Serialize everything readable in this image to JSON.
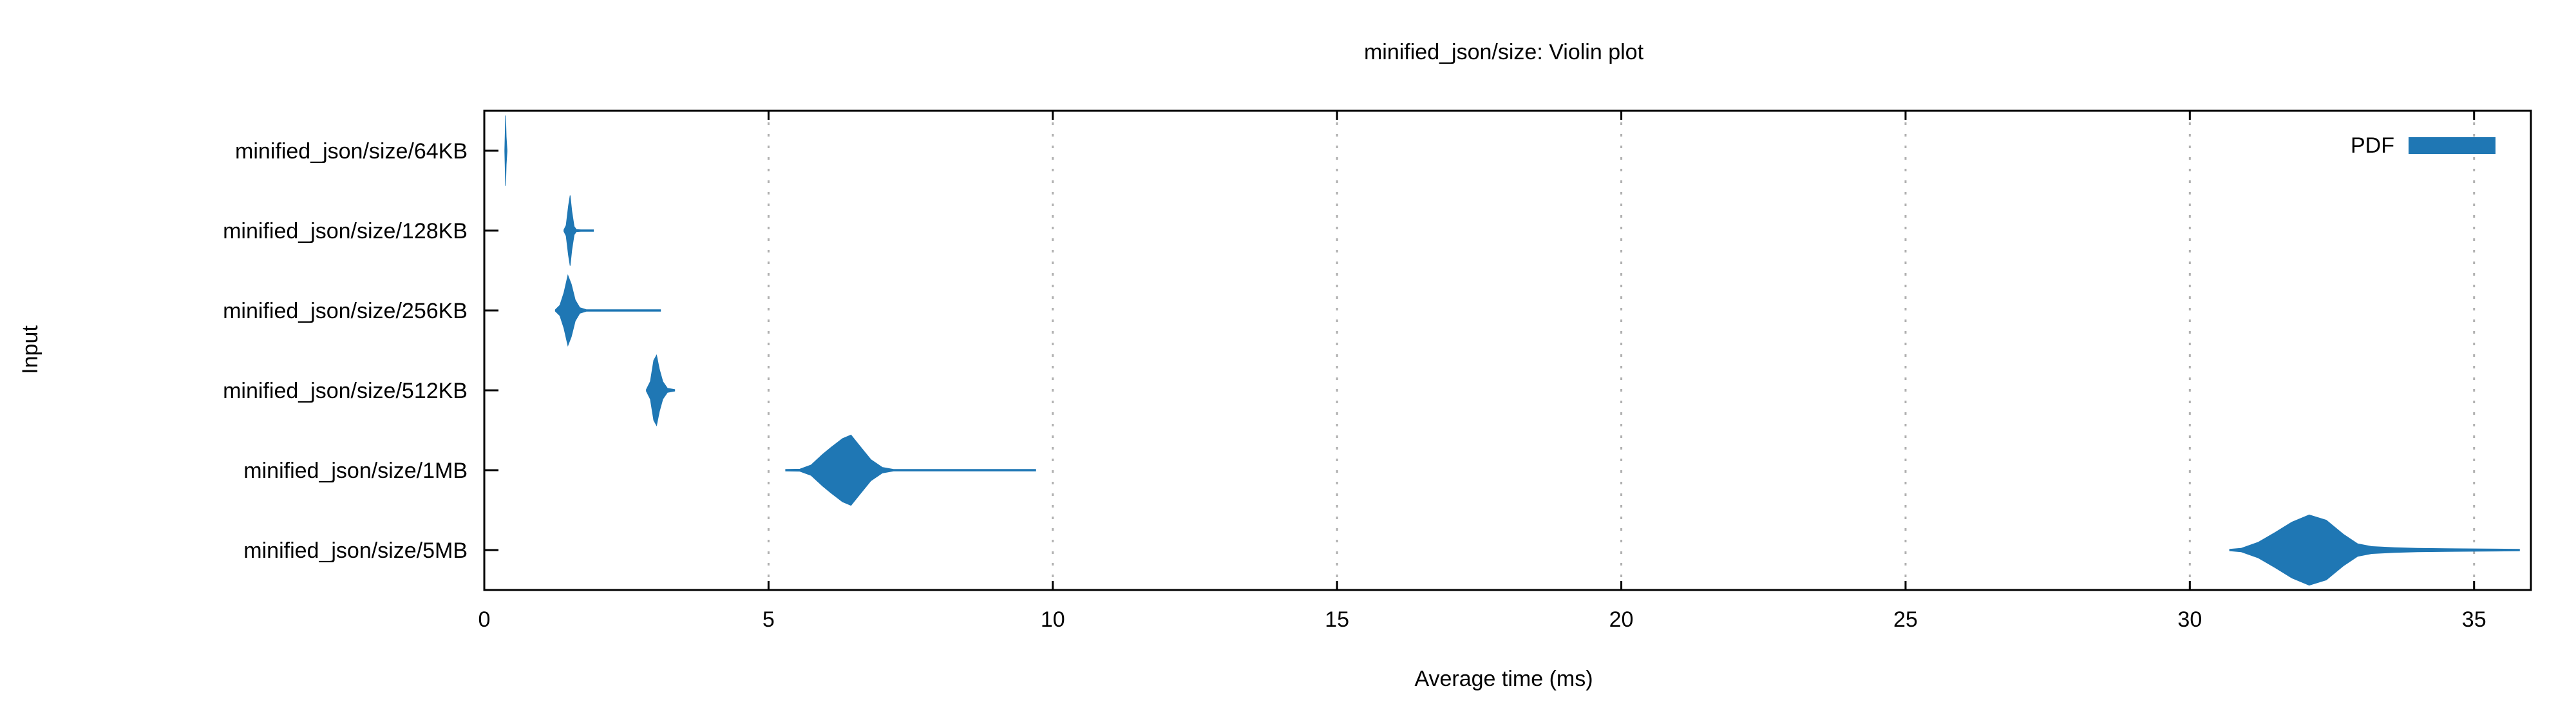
{
  "chart_data": {
    "type": "violin",
    "title": "minified_json/size: Violin plot",
    "xlabel": "Average time (ms)",
    "ylabel": "Input",
    "xlim": [
      0,
      36
    ],
    "xticks": [
      0,
      5,
      10,
      15,
      20,
      25,
      30,
      35
    ],
    "grid": {
      "x": true,
      "y": false,
      "style": "dotted"
    },
    "legend": {
      "label": "PDF",
      "position": "top-right"
    },
    "colors": {
      "violin": "#1f77b4",
      "grid": "#b0b0b0",
      "axis": "#000000"
    },
    "categories": [
      "minified_json/size/64KB",
      "minified_json/size/128KB",
      "minified_json/size/256KB",
      "minified_json/size/512KB",
      "minified_json/size/1MB",
      "minified_json/size/5MB"
    ],
    "series": [
      {
        "category": "minified_json/size/64KB",
        "min": 0.36,
        "max": 0.4,
        "density": [
          [
            0.36,
            0.0
          ],
          [
            0.375,
            1.0
          ],
          [
            0.385,
            0.4
          ],
          [
            0.4,
            0.0
          ]
        ]
      },
      {
        "category": "minified_json/size/128KB",
        "min": 1.4,
        "max": 1.92,
        "density": [
          [
            1.4,
            0.0
          ],
          [
            1.44,
            0.15
          ],
          [
            1.48,
            0.7
          ],
          [
            1.51,
            1.0
          ],
          [
            1.54,
            0.55
          ],
          [
            1.58,
            0.12
          ],
          [
            1.62,
            0.03
          ],
          [
            1.7,
            0.01
          ],
          [
            1.85,
            0.02
          ],
          [
            1.92,
            0.0
          ]
        ]
      },
      {
        "category": "minified_json/size/256KB",
        "min": 1.25,
        "max": 3.1,
        "density": [
          [
            1.25,
            0.0
          ],
          [
            1.33,
            0.15
          ],
          [
            1.4,
            0.5
          ],
          [
            1.47,
            1.0
          ],
          [
            1.53,
            0.75
          ],
          [
            1.6,
            0.3
          ],
          [
            1.68,
            0.08
          ],
          [
            1.8,
            0.01
          ],
          [
            2.9,
            0.01
          ],
          [
            3.1,
            0.0
          ]
        ]
      },
      {
        "category": "minified_json/size/512KB",
        "min": 2.85,
        "max": 3.35,
        "density": [
          [
            2.85,
            0.0
          ],
          [
            2.92,
            0.25
          ],
          [
            2.98,
            0.85
          ],
          [
            3.03,
            1.0
          ],
          [
            3.08,
            0.6
          ],
          [
            3.14,
            0.25
          ],
          [
            3.22,
            0.06
          ],
          [
            3.35,
            0.0
          ]
        ]
      },
      {
        "category": "minified_json/size/1MB",
        "min": 5.3,
        "max": 9.7,
        "density": [
          [
            5.3,
            0.0
          ],
          [
            5.55,
            0.03
          ],
          [
            5.75,
            0.15
          ],
          [
            5.95,
            0.45
          ],
          [
            6.1,
            0.65
          ],
          [
            6.3,
            0.9
          ],
          [
            6.45,
            1.0
          ],
          [
            6.6,
            0.7
          ],
          [
            6.8,
            0.3
          ],
          [
            7.0,
            0.08
          ],
          [
            7.2,
            0.02
          ],
          [
            7.4,
            0.0
          ],
          [
            8.7,
            0.0
          ],
          [
            8.75,
            0.02
          ],
          [
            9.6,
            0.02
          ],
          [
            9.7,
            0.0
          ]
        ]
      },
      {
        "category": "minified_json/size/5MB",
        "min": 30.7,
        "max": 35.8,
        "density": [
          [
            30.7,
            0.0
          ],
          [
            30.9,
            0.05
          ],
          [
            31.2,
            0.22
          ],
          [
            31.5,
            0.5
          ],
          [
            31.8,
            0.8
          ],
          [
            32.1,
            1.0
          ],
          [
            32.4,
            0.85
          ],
          [
            32.7,
            0.45
          ],
          [
            32.95,
            0.18
          ],
          [
            33.2,
            0.1
          ],
          [
            33.6,
            0.07
          ],
          [
            34.0,
            0.05
          ],
          [
            34.5,
            0.04
          ],
          [
            35.0,
            0.035
          ],
          [
            35.4,
            0.03
          ],
          [
            35.8,
            0.0
          ]
        ]
      }
    ]
  }
}
